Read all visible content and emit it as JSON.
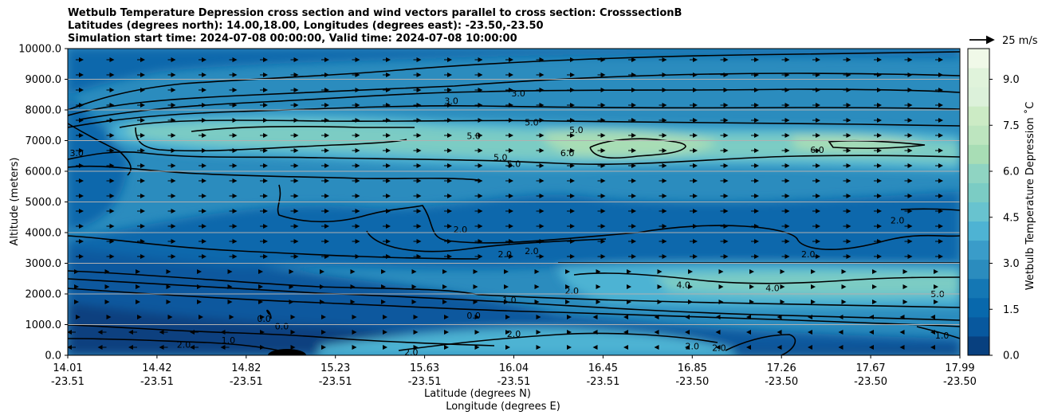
{
  "chart_data": {
    "type": "contourf",
    "title_lines": [
      "Wetbulb Temperature Depression cross section and wind vectors parallel to cross section: CrosssectionB",
      "Latitudes (degrees north): 14.00,18.00, Longitudes (degrees east): -23.50,-23.50",
      "Simulation start time: 2024-07-08 00:00:00, Valid time: 2024-07-08 10:00:00"
    ],
    "ylabel": "Altitude (meters)",
    "xlabel_lat": "Latitude (degrees N)",
    "xlabel_lon": "Longitude (degrees E)",
    "ylim": [
      0,
      10000
    ],
    "y_ticks": [
      "0.0",
      "1000.0",
      "2000.0",
      "3000.0",
      "4000.0",
      "5000.0",
      "6000.0",
      "7000.0",
      "8000.0",
      "9000.0",
      "10000.0"
    ],
    "x_ticks": [
      {
        "lat": "14.01",
        "lon": "-23.51"
      },
      {
        "lat": "14.42",
        "lon": "-23.51"
      },
      {
        "lat": "14.82",
        "lon": "-23.51"
      },
      {
        "lat": "15.23",
        "lon": "-23.51"
      },
      {
        "lat": "15.63",
        "lon": "-23.51"
      },
      {
        "lat": "16.04",
        "lon": "-23.51"
      },
      {
        "lat": "16.45",
        "lon": "-23.51"
      },
      {
        "lat": "16.85",
        "lon": "-23.50"
      },
      {
        "lat": "17.26",
        "lon": "-23.50"
      },
      {
        "lat": "17.67",
        "lon": "-23.50"
      },
      {
        "lat": "17.99",
        "lon": "-23.50"
      }
    ],
    "colorbar": {
      "label": "Wetbulb Temperature Depression $^\\circ$C",
      "label_display": "Wetbulb Temperature Depression ˚C",
      "range": [
        0,
        10
      ],
      "tick_labels": [
        "0.0",
        "1.5",
        "3.0",
        "4.5",
        "6.0",
        "7.5",
        "9.0"
      ],
      "tick_values": [
        0,
        1.5,
        3,
        4.5,
        6,
        7.5,
        9
      ],
      "colors": [
        "#08407f",
        "#08589e",
        "#0868ac",
        "#1477b4",
        "#2b8cbe",
        "#3a9cc9",
        "#4eb3d3",
        "#68c3cf",
        "#7bccc4",
        "#8fd4c2",
        "#a8ddb5",
        "#bde5bf",
        "#ccebc5",
        "#dcf1da",
        "#e0f3db",
        "#f0f9e8"
      ]
    },
    "wind_key": {
      "label": "25 m/s",
      "value": 25
    },
    "contour_labels": [
      {
        "text": "3.0",
        "x": 0.43,
        "y": 8300
      },
      {
        "text": "3.0",
        "x": 0.505,
        "y": 8550
      },
      {
        "text": "5.0",
        "x": 0.52,
        "y": 7600
      },
      {
        "text": "5.0",
        "x": 0.57,
        "y": 7350
      },
      {
        "text": "5.0",
        "x": 0.455,
        "y": 7150
      },
      {
        "text": "5.0",
        "x": 0.485,
        "y": 6450
      },
      {
        "text": "5.0",
        "x": 0.5,
        "y": 6250
      },
      {
        "text": "6.0",
        "x": 0.56,
        "y": 6600
      },
      {
        "text": "6.0",
        "x": 0.84,
        "y": 6700
      },
      {
        "text": "3.0",
        "x": 0.01,
        "y": 6600
      },
      {
        "text": "2.0",
        "x": 0.44,
        "y": 4100
      },
      {
        "text": "2.0",
        "x": 0.49,
        "y": 3300
      },
      {
        "text": "2.0",
        "x": 0.52,
        "y": 3400
      },
      {
        "text": "2.0",
        "x": 0.83,
        "y": 3300
      },
      {
        "text": "2.0",
        "x": 0.93,
        "y": 4400
      },
      {
        "text": "2.0",
        "x": 0.565,
        "y": 2100
      },
      {
        "text": "1.0",
        "x": 0.495,
        "y": 1800
      },
      {
        "text": "4.0",
        "x": 0.69,
        "y": 2300
      },
      {
        "text": "4.0",
        "x": 0.79,
        "y": 2200
      },
      {
        "text": "5.0",
        "x": 0.975,
        "y": 2000
      },
      {
        "text": "0.0",
        "x": 0.455,
        "y": 1300
      },
      {
        "text": "0.0",
        "x": 0.22,
        "y": 1200
      },
      {
        "text": "0.0",
        "x": 0.24,
        "y": 950
      },
      {
        "text": "2.0",
        "x": 0.5,
        "y": 700
      },
      {
        "text": "2.0",
        "x": 0.7,
        "y": 300
      },
      {
        "text": "2.0",
        "x": 0.73,
        "y": 250
      },
      {
        "text": "1.0",
        "x": 0.18,
        "y": 500
      },
      {
        "text": "2.0",
        "x": 0.13,
        "y": 350
      },
      {
        "text": "2.0",
        "x": 0.385,
        "y": 100
      },
      {
        "text": "1.0",
        "x": 0.98,
        "y": 650
      }
    ]
  }
}
